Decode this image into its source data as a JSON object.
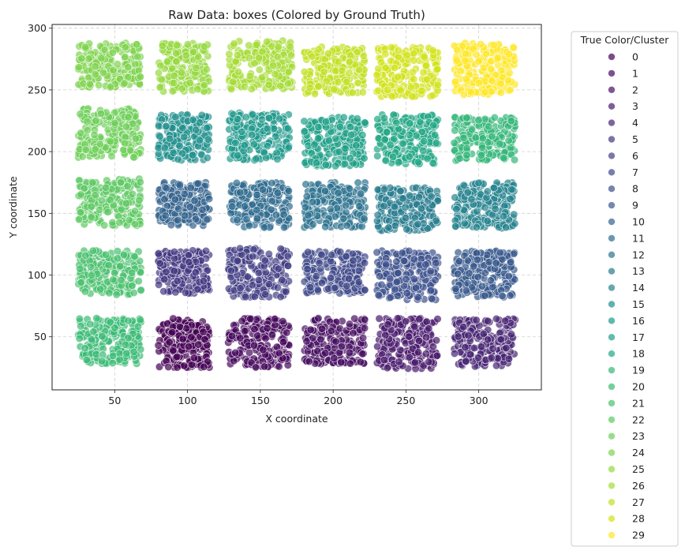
{
  "chart_data": {
    "type": "scatter",
    "title": "Raw Data: boxes (Colored by Ground Truth)",
    "xlabel": "X coordinate",
    "ylabel": "Y coordinate",
    "xlim": [
      7,
      343
    ],
    "ylim": [
      7,
      303
    ],
    "xticks": [
      50,
      100,
      150,
      200,
      250,
      300
    ],
    "yticks": [
      50,
      100,
      150,
      200,
      250,
      300
    ],
    "grid": true,
    "grid_style": "dashed",
    "legend": {
      "title": "True Color/Cluster",
      "placement": "outside-right",
      "entries": [
        "0",
        "1",
        "2",
        "3",
        "4",
        "5",
        "6",
        "7",
        "8",
        "9",
        "10",
        "11",
        "12",
        "13",
        "14",
        "15",
        "16",
        "17",
        "18",
        "19",
        "20",
        "21",
        "22",
        "23",
        "24",
        "25",
        "26",
        "27",
        "28",
        "29"
      ]
    },
    "colormap": "viridis",
    "marker_alpha": 0.7,
    "clusters": [
      {
        "label": "0",
        "x": 100,
        "y": 45,
        "x_range": [
          80,
          115
        ],
        "y_range": [
          25,
          65
        ],
        "color": "#440154"
      },
      {
        "label": "1",
        "x": 150,
        "y": 45,
        "x_range": [
          128,
          170
        ],
        "y_range": [
          25,
          65
        ],
        "color": "#46085c"
      },
      {
        "label": "2",
        "x": 200,
        "y": 45,
        "x_range": [
          180,
          222
        ],
        "y_range": [
          28,
          65
        ],
        "color": "#471063"
      },
      {
        "label": "3",
        "x": 250,
        "y": 45,
        "x_range": [
          230,
          272
        ],
        "y_range": [
          24,
          65
        ],
        "color": "#481a6c"
      },
      {
        "label": "4",
        "x": 300,
        "y": 45,
        "x_range": [
          283,
          325
        ],
        "y_range": [
          26,
          65
        ],
        "color": "#472574"
      },
      {
        "label": "5",
        "x": 100,
        "y": 102,
        "x_range": [
          80,
          115
        ],
        "y_range": [
          85,
          120
        ],
        "color": "#453781"
      },
      {
        "label": "6",
        "x": 150,
        "y": 102,
        "x_range": [
          128,
          170
        ],
        "y_range": [
          82,
          122
        ],
        "color": "#433e85"
      },
      {
        "label": "7",
        "x": 200,
        "y": 102,
        "x_range": [
          180,
          222
        ],
        "y_range": [
          85,
          120
        ],
        "color": "#3f4889"
      },
      {
        "label": "8",
        "x": 250,
        "y": 102,
        "x_range": [
          230,
          272
        ],
        "y_range": [
          80,
          120
        ],
        "color": "#3c508b"
      },
      {
        "label": "9",
        "x": 300,
        "y": 102,
        "x_range": [
          283,
          325
        ],
        "y_range": [
          82,
          120
        ],
        "color": "#38598c"
      },
      {
        "label": "10",
        "x": 100,
        "y": 158,
        "x_range": [
          80,
          115
        ],
        "y_range": [
          140,
          175
        ],
        "color": "#33638d"
      },
      {
        "label": "11",
        "x": 150,
        "y": 158,
        "x_range": [
          128,
          170
        ],
        "y_range": [
          138,
          175
        ],
        "color": "#2f6b8e"
      },
      {
        "label": "12",
        "x": 200,
        "y": 158,
        "x_range": [
          180,
          222
        ],
        "y_range": [
          138,
          175
        ],
        "color": "#2c728e"
      },
      {
        "label": "13",
        "x": 250,
        "y": 158,
        "x_range": [
          230,
          272
        ],
        "y_range": [
          136,
          172
        ],
        "color": "#287c8e"
      },
      {
        "label": "14",
        "x": 300,
        "y": 158,
        "x_range": [
          283,
          325
        ],
        "y_range": [
          138,
          175
        ],
        "color": "#25838e"
      },
      {
        "label": "15",
        "x": 100,
        "y": 212,
        "x_range": [
          80,
          115
        ],
        "y_range": [
          193,
          230
        ],
        "color": "#21908d"
      },
      {
        "label": "16",
        "x": 150,
        "y": 212,
        "x_range": [
          128,
          170
        ],
        "y_range": [
          193,
          232
        ],
        "color": "#1f988b"
      },
      {
        "label": "17",
        "x": 200,
        "y": 212,
        "x_range": [
          180,
          222
        ],
        "y_range": [
          188,
          228
        ],
        "color": "#1fa088"
      },
      {
        "label": "18",
        "x": 250,
        "y": 212,
        "x_range": [
          230,
          272
        ],
        "y_range": [
          190,
          230
        ],
        "color": "#22a785"
      },
      {
        "label": "19",
        "x": 300,
        "y": 212,
        "x_range": [
          283,
          325
        ],
        "y_range": [
          192,
          228
        ],
        "color": "#35b779"
      },
      {
        "label": "20",
        "x": 45,
        "y": 45,
        "x_range": [
          25,
          68
        ],
        "y_range": [
          28,
          65
        ],
        "color": "#3bbb75"
      },
      {
        "label": "21",
        "x": 45,
        "y": 102,
        "x_range": [
          25,
          68
        ],
        "y_range": [
          84,
          120
        ],
        "color": "#4ac16d"
      },
      {
        "label": "22",
        "x": 45,
        "y": 158,
        "x_range": [
          25,
          68
        ],
        "y_range": [
          140,
          178
        ],
        "color": "#5ec962"
      },
      {
        "label": "23",
        "x": 45,
        "y": 212,
        "x_range": [
          25,
          68
        ],
        "y_range": [
          195,
          235
        ],
        "color": "#6ece58"
      },
      {
        "label": "24",
        "x": 45,
        "y": 268,
        "x_range": [
          25,
          68
        ],
        "y_range": [
          252,
          288
        ],
        "color": "#7fd34e"
      },
      {
        "label": "25",
        "x": 100,
        "y": 268,
        "x_range": [
          80,
          115
        ],
        "y_range": [
          248,
          288
        ],
        "color": "#95d840"
      },
      {
        "label": "26",
        "x": 150,
        "y": 268,
        "x_range": [
          128,
          172
        ],
        "y_range": [
          250,
          290
        ],
        "color": "#a5db36"
      },
      {
        "label": "27",
        "x": 200,
        "y": 268,
        "x_range": [
          180,
          222
        ],
        "y_range": [
          246,
          285
        ],
        "color": "#c2df23"
      },
      {
        "label": "28",
        "x": 250,
        "y": 268,
        "x_range": [
          230,
          272
        ],
        "y_range": [
          244,
          285
        ],
        "color": "#d2e21b"
      },
      {
        "label": "29",
        "x": 300,
        "y": 268,
        "x_range": [
          283,
          325
        ],
        "y_range": [
          246,
          288
        ],
        "color": "#fde725"
      }
    ],
    "points_per_cluster": 200
  }
}
